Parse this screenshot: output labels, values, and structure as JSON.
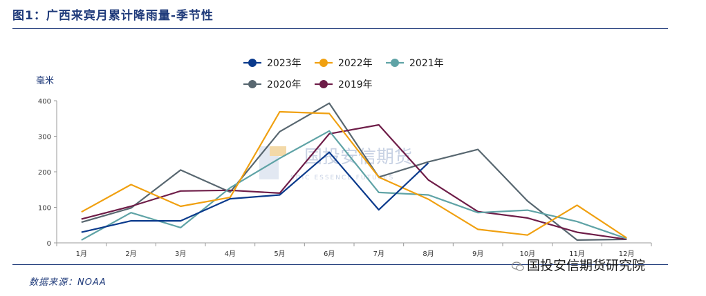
{
  "title": "图1：广西来宾月累计降雨量-季节性",
  "unit": "毫米",
  "source": "数据来源：NOAA",
  "watermark_cn": "国投安信期货",
  "watermark_en": "SDIC ESSENCE FUTURES",
  "footer_brand": "国投安信期货研究院",
  "chart_data": {
    "type": "line",
    "categories": [
      "1月",
      "2月",
      "3月",
      "4月",
      "5月",
      "6月",
      "7月",
      "8月",
      "9月",
      "10月",
      "11月",
      "12月"
    ],
    "ylim": [
      0,
      400
    ],
    "yticks": [
      0,
      100,
      200,
      300,
      400
    ],
    "series": [
      {
        "name": "2023年",
        "color": "#0a3a8c",
        "values": [
          30,
          62,
          62,
          124,
          135,
          255,
          93,
          225,
          null,
          null,
          null,
          null
        ]
      },
      {
        "name": "2022年",
        "color": "#f0a010",
        "values": [
          87,
          164,
          103,
          128,
          369,
          364,
          185,
          123,
          38,
          22,
          106,
          14
        ]
      },
      {
        "name": "2021年",
        "color": "#5fa3a6",
        "values": [
          8,
          85,
          43,
          155,
          238,
          315,
          142,
          135,
          85,
          92,
          60,
          12
        ]
      },
      {
        "name": "2020年",
        "color": "#586770",
        "values": [
          58,
          98,
          205,
          143,
          313,
          393,
          185,
          228,
          263,
          118,
          8,
          10
        ]
      },
      {
        "name": "2019年",
        "color": "#6e1d48",
        "values": [
          67,
          103,
          146,
          148,
          140,
          307,
          332,
          177,
          88,
          70,
          30,
          10
        ]
      }
    ]
  }
}
